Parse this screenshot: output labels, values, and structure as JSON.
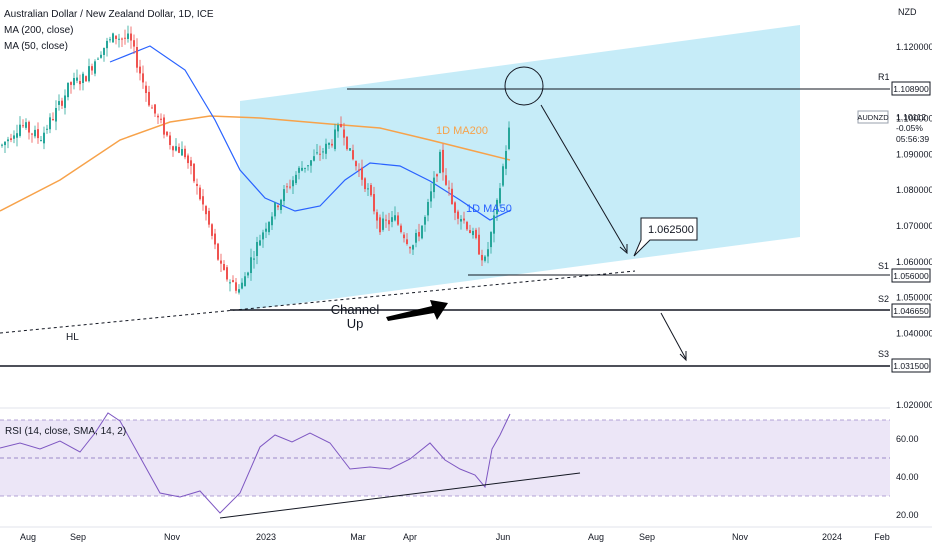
{
  "header": {
    "symbol_title": "Australian Dollar / New Zealand Dollar, 1D, ICE",
    "ma200_label": "MA (200, close)",
    "ma50_label": "MA (50, close)",
    "currency": "NZD"
  },
  "ticker_tag": {
    "symbol": "AUDNZD",
    "price": "1.10112",
    "change": "-0.05%",
    "countdown": "05:56:39"
  },
  "colors": {
    "channel_fill": "#b3e5f5",
    "up_candle": "#26a69a",
    "down_candle": "#ef5350",
    "ma200": "#f7a24a",
    "ma50": "#2962ff",
    "rsi_line": "#7e57c2",
    "rsi_band": "#ece6f7"
  },
  "annotations": {
    "r1_label": "R1",
    "r1_value": "1.108900",
    "s1_label": "S1",
    "s1_value": "1.056000",
    "s2_label": "S2",
    "s2_value": "1.046650",
    "s3_label": "S3",
    "s3_value": "1.031500",
    "target_value": "1.062500",
    "channel_text_line1": "Channel",
    "channel_text_line2": "Up",
    "hl_label": "HL",
    "ma200_tag": "1D MA200",
    "ma50_tag": "1D MA50"
  },
  "rsi": {
    "label": "RSI (14, close, SMA, 14, 2)",
    "ticks": [
      "60.00",
      "40.00",
      "20.00"
    ]
  },
  "chart_data": {
    "type": "candlestick",
    "title": "Australian Dollar / New Zealand Dollar, 1D, ICE",
    "ylabel": "NZD",
    "ylim": [
      1.0135,
      1.1335
    ],
    "price_ticks": [
      "1.120000",
      "1.100000",
      "1.090000",
      "1.080000",
      "1.070000",
      "1.060000",
      "1.050000",
      "1.040000",
      "1.020000"
    ],
    "time_ticks": [
      "Aug",
      "Sep",
      "Nov",
      "2023",
      "Mar",
      "Apr",
      "Jun",
      "Aug",
      "Sep",
      "Nov",
      "2024",
      "Feb"
    ],
    "levels": [
      {
        "name": "R1",
        "value": 1.1089
      },
      {
        "name": "S1",
        "value": 1.056
      },
      {
        "name": "S2",
        "value": 1.04665
      },
      {
        "name": "S3",
        "value": 1.0315
      }
    ],
    "target": 1.0625,
    "last_price": 1.10112,
    "series": [
      {
        "name": "MA (200, close)"
      },
      {
        "name": "MA (50, close)"
      },
      {
        "name": "RSI (14, close, SMA, 14, 2)"
      }
    ]
  }
}
